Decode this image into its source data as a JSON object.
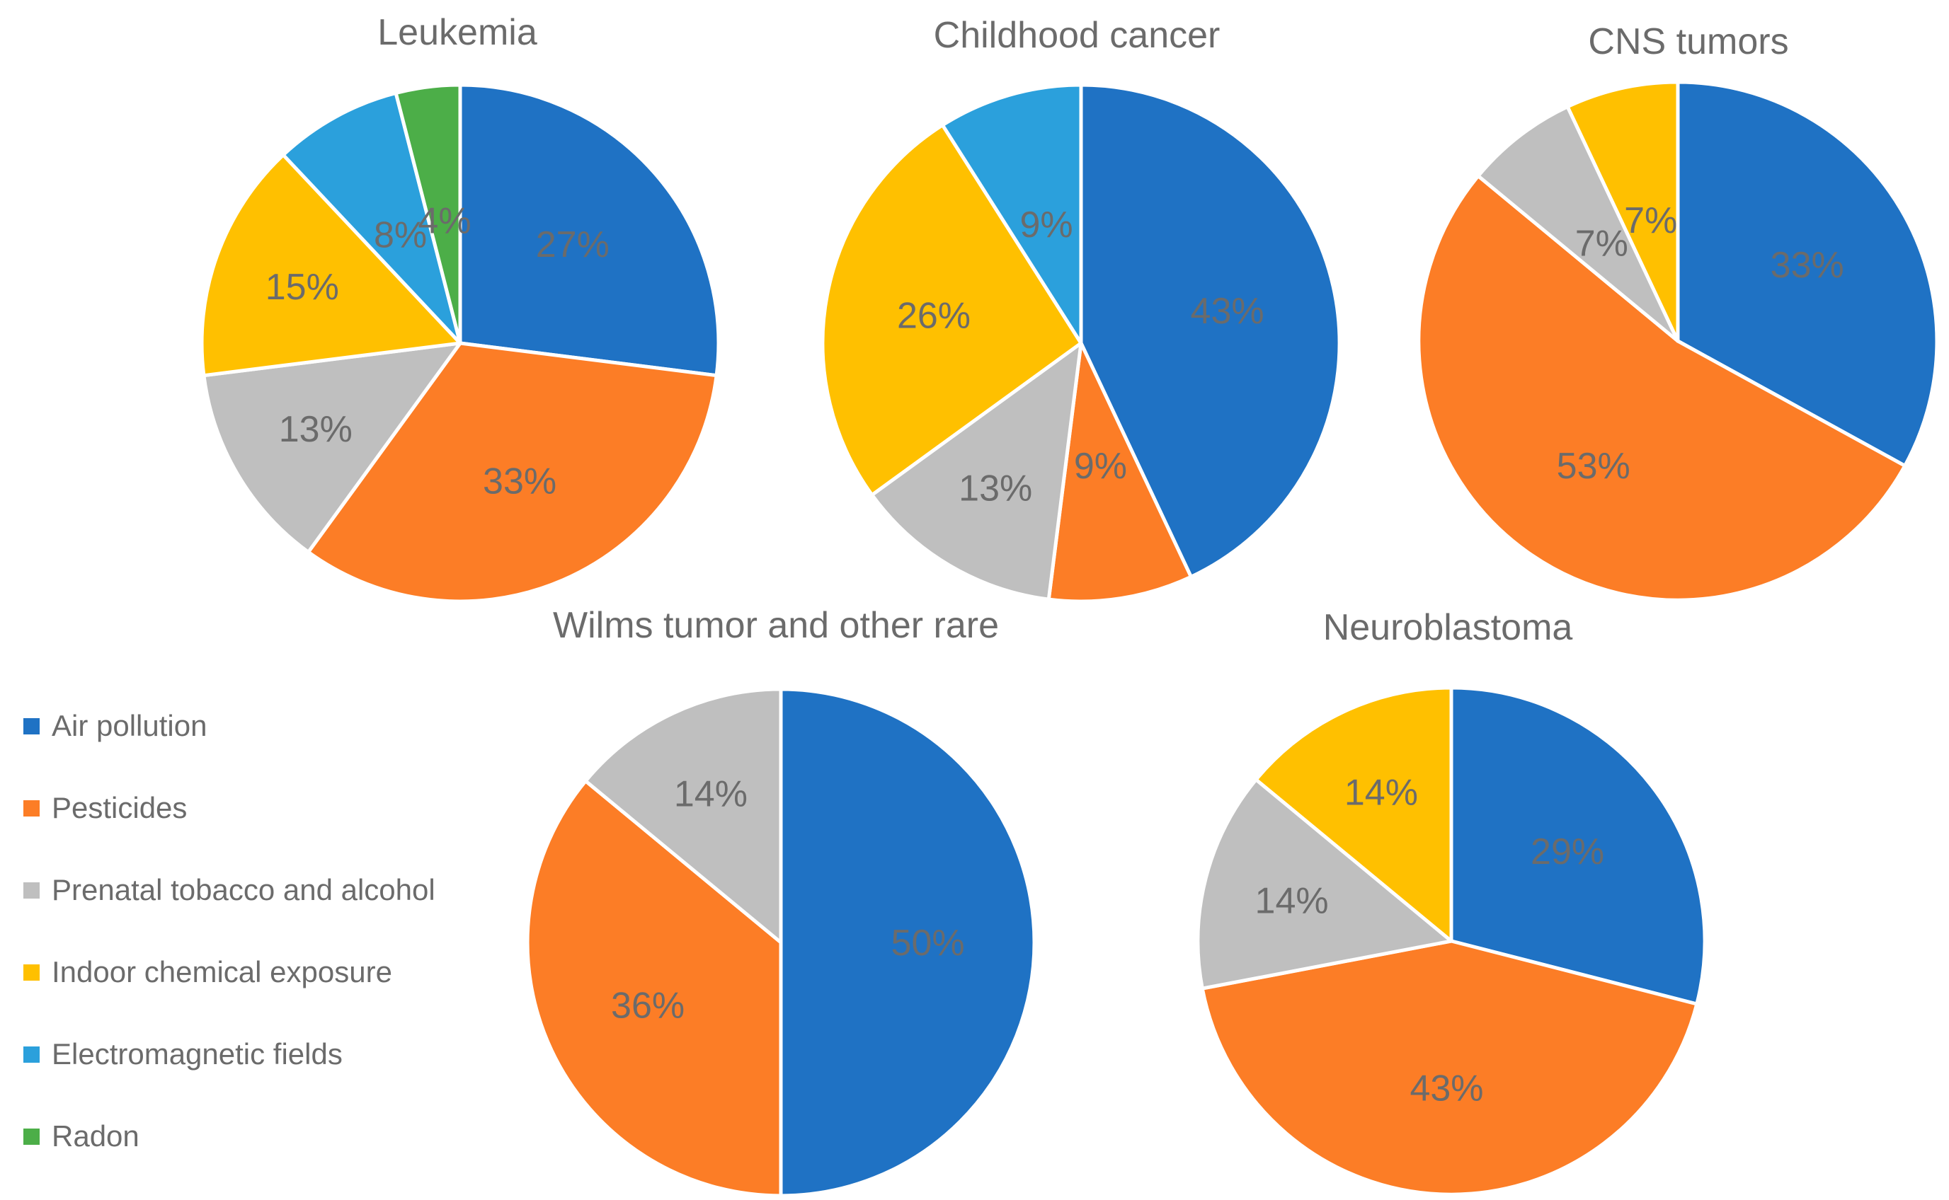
{
  "figure": {
    "background": "#FFFFFF",
    "text_color": "#6B6B6B",
    "slice_border_color": "#FFFFFF"
  },
  "legend": {
    "position": "left",
    "items": [
      {
        "label": "Air pollution",
        "color": "#1F72C4",
        "swatch": "square-icon"
      },
      {
        "label": "Pesticides",
        "color": "#FC7D26",
        "swatch": "square-icon"
      },
      {
        "label": "Prenatal tobacco and alcohol",
        "color": "#BFBFBF",
        "swatch": "square-icon"
      },
      {
        "label": "Indoor chemical exposure",
        "color": "#FFC000",
        "swatch": "square-icon"
      },
      {
        "label": "Electromagnetic fields",
        "color": "#2BA0DC",
        "swatch": "square-icon"
      },
      {
        "label": "Radon",
        "color": "#4CAE48",
        "swatch": "square-icon"
      }
    ]
  },
  "chart_data": [
    {
      "type": "pie",
      "title": "Leukemia",
      "start_angle": 0,
      "direction": "clockwise",
      "categories": [
        "Air pollution",
        "Pesticides",
        "Prenatal tobacco and alcohol",
        "Indoor chemical exposure",
        "Electromagnetic fields",
        "Radon"
      ],
      "values": [
        27,
        33,
        13,
        15,
        8,
        4
      ],
      "labels": [
        "27%",
        "33%",
        "13%",
        "15%",
        "8%",
        "4%"
      ],
      "colors": [
        "#1F72C4",
        "#FC7D26",
        "#BFBFBF",
        "#FFC000",
        "#2BA0DC",
        "#4CAE48"
      ]
    },
    {
      "type": "pie",
      "title": "Childhood cancer",
      "start_angle": 0,
      "direction": "clockwise",
      "categories": [
        "Air pollution",
        "Pesticides",
        "Prenatal tobacco and alcohol",
        "Indoor chemical exposure",
        "Electromagnetic fields"
      ],
      "values": [
        43,
        9,
        13,
        26,
        9
      ],
      "labels": [
        "43%",
        "9%",
        "13%",
        "26%",
        "9%"
      ],
      "colors": [
        "#1F72C4",
        "#FC7D26",
        "#BFBFBF",
        "#FFC000",
        "#2BA0DC"
      ]
    },
    {
      "type": "pie",
      "title": "CNS tumors",
      "start_angle": 0,
      "direction": "clockwise",
      "categories": [
        "Air pollution",
        "Pesticides",
        "Prenatal tobacco and alcohol",
        "Indoor chemical exposure"
      ],
      "values": [
        33,
        53,
        7,
        7
      ],
      "labels": [
        "33%",
        "53%",
        "7%",
        "7%"
      ],
      "colors": [
        "#1F72C4",
        "#FC7D26",
        "#BFBFBF",
        "#FFC000"
      ]
    },
    {
      "type": "pie",
      "title": "Wilms tumor and other rare",
      "start_angle": 0,
      "direction": "clockwise",
      "categories": [
        "Air pollution",
        "Pesticides",
        "Prenatal tobacco and alcohol"
      ],
      "values": [
        50,
        36,
        14
      ],
      "labels": [
        "50%",
        "36%",
        "14%"
      ],
      "colors": [
        "#1F72C4",
        "#FC7D26",
        "#BFBFBF"
      ]
    },
    {
      "type": "pie",
      "title": "Neuroblastoma",
      "start_angle": 0,
      "direction": "clockwise",
      "categories": [
        "Air pollution",
        "Pesticides",
        "Prenatal tobacco and alcohol",
        "Indoor chemical exposure"
      ],
      "values": [
        29,
        43,
        14,
        14
      ],
      "labels": [
        "29%",
        "43%",
        "14%",
        "14%"
      ],
      "colors": [
        "#1F72C4",
        "#FC7D26",
        "#BFBFBF",
        "#FFC000"
      ]
    }
  ]
}
